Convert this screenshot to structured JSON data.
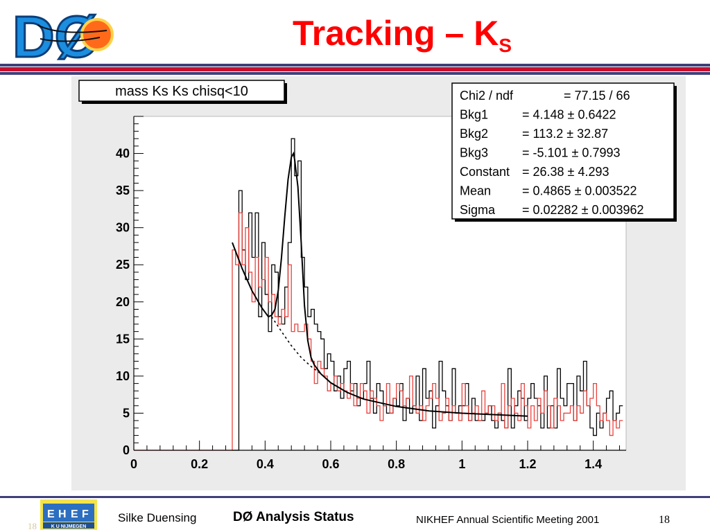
{
  "slide": {
    "title": "Tracking – K",
    "title_subscript": "S",
    "logo_text": "DØ",
    "colors": {
      "title": "#ff0000",
      "rule": "#3f3f7a",
      "rule_accent": "#c8102e"
    }
  },
  "footer": {
    "author": "Silke Duensing",
    "status": "DØ Analysis Status",
    "meeting": "NIKHEF Annual Scientific Meeting 2001",
    "page": "18",
    "ghost_page": "18",
    "logo_label": "K U NIJMEGEN",
    "logo_letters": [
      "E",
      "H",
      "E",
      "F"
    ]
  },
  "chart_data": {
    "type": "line",
    "title": "mass Ks Ks chisq<10",
    "xlim": [
      0,
      1.5
    ],
    "ylim": [
      0,
      45
    ],
    "x_ticks": [
      "0",
      "0.2",
      "0.4",
      "0.6",
      "0.8",
      "1",
      "1.2",
      "1.4"
    ],
    "y_ticks": [
      "0",
      "5",
      "10",
      "15",
      "20",
      "25",
      "30",
      "35",
      "40"
    ],
    "bin_width": 0.01,
    "grid": false,
    "stats_box": {
      "position": "top-right",
      "lines": [
        {
          "label": "Chi2 / ndf",
          "value": "= 77.15 / 66"
        },
        {
          "label": "Bkg1",
          "value": "= 4.148 ± 0.6422"
        },
        {
          "label": "Bkg2",
          "value": "= 113.2 ± 32.87"
        },
        {
          "label": "Bkg3",
          "value": "= -5.101 ± 0.7993"
        },
        {
          "label": "Constant",
          "value": "= 26.38 ± 4.293"
        },
        {
          "label": "Mean",
          "value": "= 0.4865 ± 0.003522"
        },
        {
          "label": "Sigma",
          "value": "= 0.02282 ± 0.003962"
        }
      ]
    },
    "series": [
      {
        "style": "histogram",
        "color": "#000000",
        "x_start": 0.3,
        "values": [
          0,
          0,
          35,
          27,
          23,
          32,
          26,
          32,
          18,
          28,
          21,
          16,
          25,
          24,
          18,
          17,
          22,
          28,
          42,
          37,
          39,
          26,
          22,
          18,
          19,
          17,
          16,
          15,
          11,
          13,
          12,
          8,
          10,
          7,
          11,
          12,
          8,
          9,
          6,
          7,
          9,
          12,
          7,
          5,
          9,
          8,
          6,
          5,
          5,
          7,
          6,
          9,
          4,
          7,
          5,
          6,
          10,
          4,
          11,
          7,
          8,
          3,
          6,
          12,
          8,
          6,
          4,
          11,
          5,
          6,
          6,
          9,
          4,
          7,
          4,
          4,
          4,
          5,
          6,
          4,
          3,
          5,
          4,
          3,
          11,
          3,
          6,
          8,
          7,
          4,
          7,
          9,
          7,
          6,
          3,
          10,
          3,
          6,
          3,
          11,
          7,
          6,
          9,
          9,
          4,
          10,
          8,
          12,
          6,
          3,
          2,
          5,
          3,
          5,
          7,
          8,
          4,
          5,
          6
        ]
      },
      {
        "style": "histogram",
        "color": "#e8413c",
        "x_start": 0.3,
        "values": [
          27,
          25,
          32,
          25,
          30,
          24,
          20,
          26,
          22,
          23,
          26,
          20,
          21,
          18,
          17,
          19,
          18,
          25,
          16,
          17,
          16,
          16,
          17,
          15,
          12,
          9,
          12,
          11,
          10,
          8,
          9,
          10,
          8,
          9,
          8,
          7,
          9,
          6,
          7,
          9,
          8,
          5,
          8,
          7,
          6,
          4,
          6,
          9,
          5,
          7,
          9,
          8,
          6,
          7,
          10,
          6,
          5,
          6,
          4,
          6,
          7,
          9,
          7,
          4,
          5,
          7,
          4,
          6,
          5,
          4,
          9,
          6,
          4,
          5,
          6,
          4,
          8,
          5,
          6,
          6,
          4,
          5,
          9,
          3,
          6,
          7,
          5,
          4,
          9,
          6,
          3,
          6,
          4,
          7,
          5,
          8,
          6,
          3,
          7,
          6,
          4,
          5,
          5,
          6,
          4,
          6,
          5,
          8,
          6,
          7,
          9,
          6,
          4,
          5,
          4,
          2,
          4,
          3,
          4
        ]
      },
      {
        "style": "fit",
        "color": "#000000",
        "x": [
          0.3,
          0.33,
          0.36,
          0.39,
          0.41,
          0.42,
          0.43,
          0.44,
          0.45,
          0.46,
          0.47,
          0.48,
          0.4865,
          0.49,
          0.5,
          0.51,
          0.52,
          0.53,
          0.54,
          0.55,
          0.57,
          0.6,
          0.65,
          0.7,
          0.8,
          0.9,
          1.0,
          1.1,
          1.2
        ],
        "y": [
          28.0,
          24.5,
          21.5,
          19.2,
          18.0,
          18.2,
          19.0,
          21.5,
          26.0,
          31.5,
          36.5,
          39.5,
          40.0,
          39.2,
          35.5,
          28.0,
          19.5,
          14.8,
          12.5,
          11.5,
          10.3,
          9.1,
          7.8,
          6.9,
          5.9,
          5.3,
          5.0,
          4.8,
          4.6
        ]
      },
      {
        "style": "background",
        "color": "#000000",
        "dash": true,
        "x": [
          0.42,
          0.45,
          0.48,
          0.51,
          0.54,
          0.57
        ],
        "y": [
          18.0,
          16.0,
          14.1,
          12.5,
          11.3,
          10.3
        ]
      }
    ]
  }
}
